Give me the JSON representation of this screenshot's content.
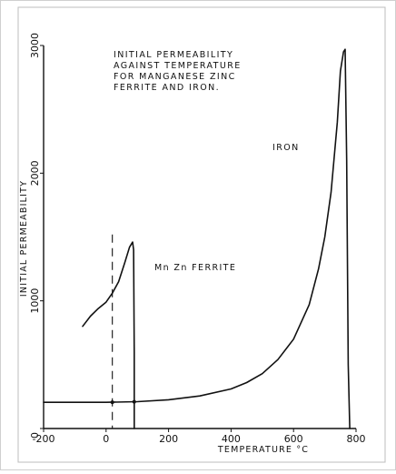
{
  "chart_data": {
    "type": "line",
    "title_lines": [
      "INITIAL PERMEABILITY",
      "AGAINST TEMPERATURE",
      "FOR MANGANESE ZINC",
      "FERRITE AND IRON."
    ],
    "xlabel": "TEMPERATURE °C",
    "ylabel": "INITIAL PERMEABILITY",
    "xlim": [
      -200,
      800
    ],
    "ylim": [
      0,
      3000
    ],
    "x_ticks": [
      -200,
      0,
      200,
      400,
      600,
      800
    ],
    "x_tick_labels": [
      "-200",
      "0",
      "200",
      "400",
      "600",
      "800"
    ],
    "y_ticks": [
      0,
      1000,
      2000,
      3000
    ],
    "y_tick_labels": [
      "0",
      "1000",
      "2000",
      "3000"
    ],
    "grid": false,
    "series": [
      {
        "name": "IRON",
        "x": [
          -200,
          -100,
          0,
          100,
          200,
          300,
          400,
          450,
          500,
          550,
          600,
          650,
          680,
          700,
          720,
          740,
          750,
          760,
          765,
          770,
          775,
          780
        ],
        "y": [
          205,
          205,
          205,
          210,
          225,
          255,
          310,
          360,
          430,
          540,
          700,
          970,
          1250,
          1500,
          1850,
          2400,
          2800,
          2950,
          2970,
          2100,
          500,
          0
        ]
      },
      {
        "name": "Mn Zn FERRITE",
        "x": [
          -75,
          -50,
          -25,
          0,
          20,
          40,
          60,
          75,
          85,
          88,
          90,
          90
        ],
        "y": [
          800,
          880,
          940,
          990,
          1060,
          1150,
          1300,
          1420,
          1460,
          1400,
          600,
          0
        ]
      }
    ],
    "annotations": {
      "iron_label": "IRON",
      "ferrite_label": "Mn Zn FERRITE"
    },
    "reference_lines": [
      {
        "type": "dashed-vertical",
        "x": 20
      }
    ]
  }
}
